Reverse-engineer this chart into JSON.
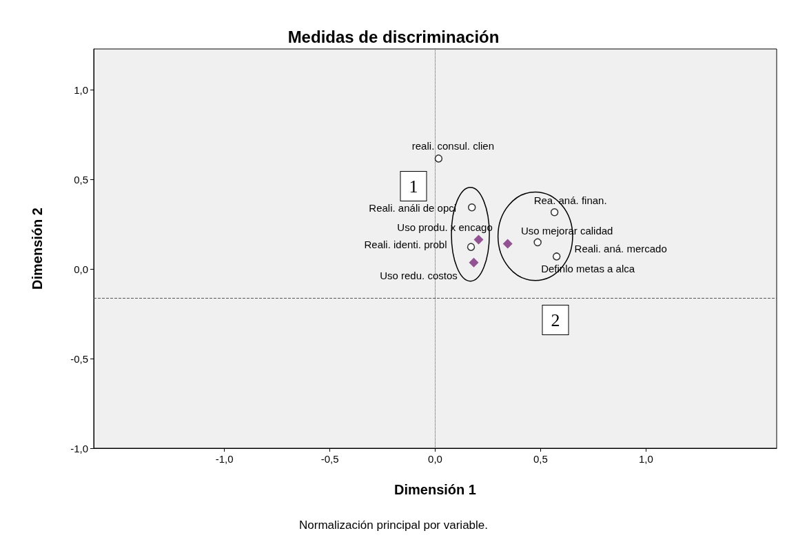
{
  "chart_data": {
    "type": "scatter",
    "title": "Medidas de discriminación",
    "xlabel": "Dimensión 1",
    "ylabel": "Dimensión 2",
    "xlim": [
      -1.62,
      1.62
    ],
    "ylim": [
      -1.0,
      1.23
    ],
    "xticks": [
      {
        "value": -1,
        "label": "-1,0"
      },
      {
        "value": -0.5,
        "label": "-0,5"
      },
      {
        "value": 0,
        "label": "0,0"
      },
      {
        "value": 0.5,
        "label": "0,5"
      },
      {
        "value": 1,
        "label": "1,0"
      }
    ],
    "yticks": [
      {
        "value": -1,
        "label": "-1,0"
      },
      {
        "value": -0.5,
        "label": "-0,5"
      },
      {
        "value": 0,
        "label": "0,0"
      },
      {
        "value": 0.5,
        "label": "0,5"
      },
      {
        "value": 1,
        "label": "1,0"
      }
    ],
    "grid": false,
    "series": [
      {
        "color": "#000000",
        "marker": "circle",
        "x": [
          0.016,
          0.174,
          0.17,
          0.566,
          0.486,
          0.576
        ],
        "values": [
          0.618,
          0.345,
          0.124,
          0.318,
          0.15,
          0.071
        ]
      },
      {
        "color": "#7b2c7b",
        "marker": "diamond",
        "x": [
          0.206,
          0.344,
          0.183
        ],
        "values": [
          0.165,
          0.142,
          0.037
        ]
      }
    ],
    "ref_lines": [
      {
        "axis": "x",
        "value": 0,
        "line_style": "dotted",
        "color": "#555555"
      },
      {
        "axis": "y",
        "value": -0.16,
        "line_style": "dashed",
        "color": "#555555"
      }
    ],
    "annotations": [
      {
        "text": "reali. consul. clien",
        "x": 0.016,
        "y": 0.618
      },
      {
        "text": "Reali. análi de opci",
        "x": 0.174,
        "y": 0.345
      },
      {
        "text": "Uso produ. x encago",
        "x": 0.206,
        "y": 0.165
      },
      {
        "text": "Reali. identi. probl",
        "x": 0.17,
        "y": 0.124
      },
      {
        "text": "Uso redu. costos",
        "x": 0.183,
        "y": 0.037
      },
      {
        "text": "Rea. aná. finan.",
        "x": 0.566,
        "y": 0.318
      },
      {
        "text": "Uso mejorar calidad",
        "x": 0.344,
        "y": 0.142
      },
      {
        "text": "Reali. aná. mercado",
        "x": 0.576,
        "y": 0.071
      },
      {
        "text": "Definlo metas a alca",
        "x": 0.486,
        "y": 0.15
      },
      "1",
      "2",
      "Normalización principal por variable."
    ]
  }
}
